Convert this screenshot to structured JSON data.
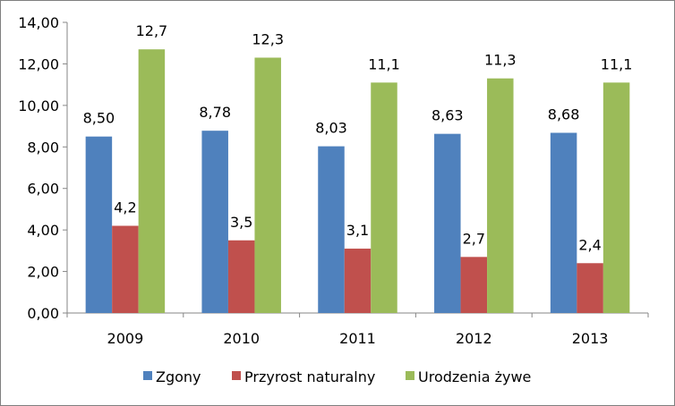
{
  "chart_data": {
    "type": "bar",
    "categories": [
      "2009",
      "2010",
      "2011",
      "2012",
      "2013"
    ],
    "series": [
      {
        "name": "Zgony",
        "color": "#4F81BD",
        "values": [
          8.5,
          8.78,
          8.03,
          8.63,
          8.68
        ],
        "labels": [
          "8,50",
          "8,78",
          "8,03",
          "8,63",
          "8,68"
        ]
      },
      {
        "name": "Przyrost naturalny",
        "color": "#C0504D",
        "values": [
          4.2,
          3.5,
          3.1,
          2.7,
          2.4
        ],
        "labels": [
          "4,2",
          "3,5",
          "3,1",
          "2,7",
          "2,4"
        ]
      },
      {
        "name": "Urodzenia żywe",
        "color": "#9BBB59",
        "values": [
          12.7,
          12.3,
          11.1,
          11.3,
          11.1
        ],
        "labels": [
          "12,7",
          "12,3",
          "11,1",
          "11,3",
          "11,1"
        ]
      }
    ],
    "ylim": [
      0,
      14
    ],
    "y_ticks": [
      "0,00",
      "2,00",
      "4,00",
      "6,00",
      "8,00",
      "10,00",
      "12,00",
      "14,00"
    ],
    "y_tick_values": [
      0,
      2,
      4,
      6,
      8,
      10,
      12,
      14
    ],
    "grid": false,
    "legend_position": "bottom"
  }
}
